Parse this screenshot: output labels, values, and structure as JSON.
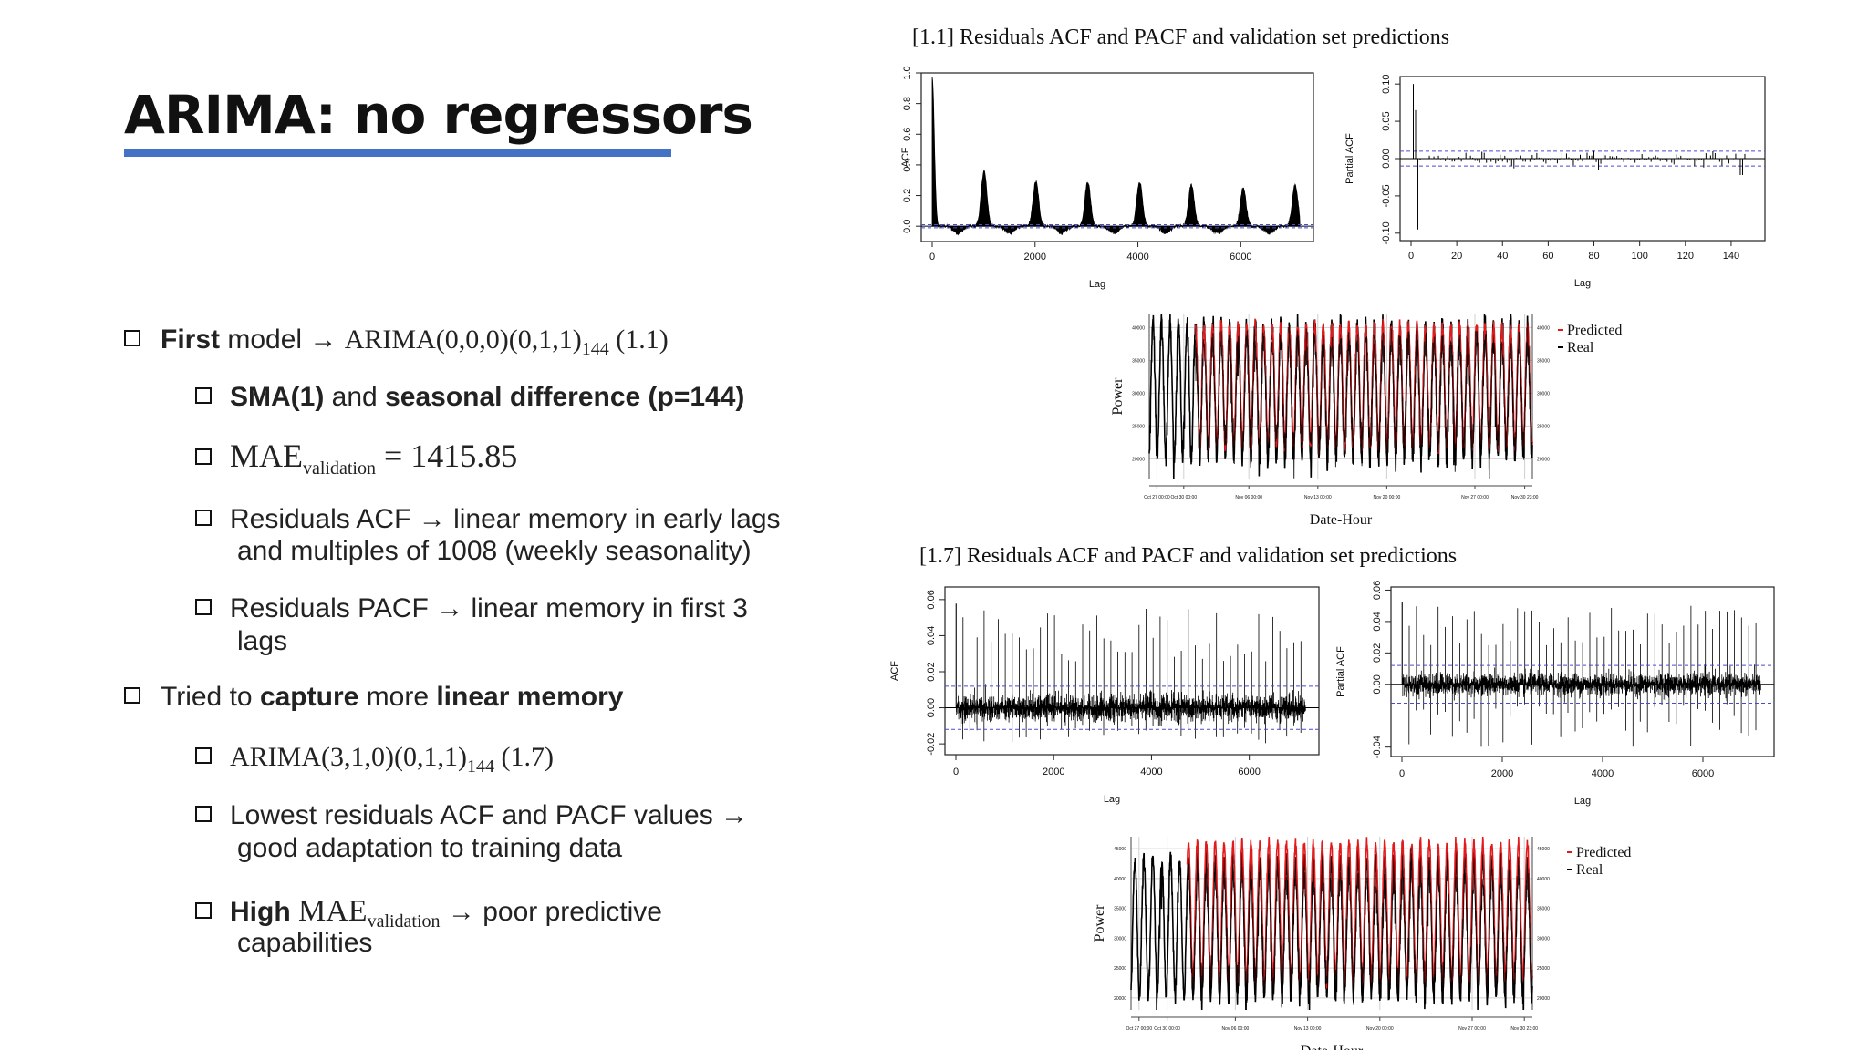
{
  "slide": {
    "title": "ARIMA: no regressors",
    "accent_color": "#4472c4"
  },
  "bullets": {
    "b1": {
      "bold": "First",
      "text": " model → ",
      "math": "ARIMA(0,0,0)(0,1,1)",
      "sub": "144",
      "tail": " (1.1)"
    },
    "b1a": {
      "bold1": "SMA(1)",
      "mid": " and ",
      "bold2": "seasonal difference (p=144)"
    },
    "b1b": {
      "math": "MAE",
      "sub": "validation",
      "tail": " =  1415.85"
    },
    "b1c_line1": "Residuals ACF → linear memory in early lags",
    "b1c_line2": "and multiples of 1008 (weekly seasonality)",
    "b1d_line1": "Residuals PACF → linear memory in first 3",
    "b1d_line2": "lags",
    "b2": {
      "pre": "Tried to ",
      "bold1": "capture",
      "mid": " more ",
      "bold2": "linear memory"
    },
    "b2a": {
      "math": "ARIMA(3,1,0)(0,1,1)",
      "sub": "144",
      "tail": " (1.7)"
    },
    "b2b_line1": "Lowest residuals ACF and PACF values →",
    "b2b_line2": "good adaptation to training data",
    "b2c": {
      "bold": "High ",
      "math": "MAE",
      "sub": "validation",
      "tail": " → poor predictive"
    },
    "b2c_line2": "capabilities"
  },
  "panel1": {
    "title": "[1.1] Residuals ACF and PACF and validation set predictions"
  },
  "panel2": {
    "title": "[1.7] Residuals ACF and PACF and validation set predictions"
  },
  "chart_data": [
    {
      "id": "acf_1_1",
      "type": "line",
      "title": "",
      "xlabel": "Lag",
      "ylabel": "ACF",
      "xlim": [
        0,
        7200
      ],
      "ylim": [
        -0.1,
        1.0
      ],
      "xticks": [
        "0",
        "2000",
        "4000",
        "6000"
      ],
      "yticks": [
        "0.0",
        "0.2",
        "0.4",
        "0.6",
        "0.8",
        "1.0"
      ],
      "spike_lags": [
        0,
        1008,
        2016,
        3024,
        4032,
        5040,
        6048,
        7056
      ],
      "spike_values": [
        0.97,
        0.36,
        0.29,
        0.29,
        0.29,
        0.27,
        0.25,
        0.27
      ],
      "conf_band": 0.01,
      "grid": false
    },
    {
      "id": "pacf_1_1",
      "type": "bar",
      "title": "",
      "xlabel": "Lag",
      "ylabel": "Partial ACF",
      "xlim": [
        0,
        150
      ],
      "ylim": [
        -0.11,
        0.11
      ],
      "xticks": [
        "0",
        "20",
        "40",
        "60",
        "80",
        "100",
        "120",
        "140"
      ],
      "yticks": [
        "-0.10",
        "-0.05",
        "0.00",
        "0.05",
        "0.10"
      ],
      "early_lags": [
        1,
        2,
        3
      ],
      "early_values": [
        0.1,
        0.065,
        -0.095
      ],
      "conf_band": 0.01,
      "grid": false
    },
    {
      "id": "pred_1_1",
      "type": "line",
      "title": "",
      "xlabel": "Date-Hour",
      "ylabel": "Power",
      "ylim": [
        17000,
        42000
      ],
      "yticks": [
        "20000",
        "25000",
        "30000",
        "35000",
        "40000"
      ],
      "xticks": [
        "Oct 27 00:00",
        "Oct 30 00:00",
        "Nov 06 00:00",
        "Nov 13 00:00",
        "Nov 20 00:00",
        "Nov 27 00:00",
        "Nov 30 23:00"
      ],
      "series": [
        {
          "name": "Predicted",
          "color": "#e31a1c",
          "cycle_low": 22000,
          "cycle_high": 40200
        },
        {
          "name": "Real",
          "color": "#000000",
          "cycle_low": 20000,
          "cycle_high": 40500
        }
      ],
      "legend": "top-right",
      "grid": true
    },
    {
      "id": "acf_1_7",
      "type": "line",
      "title": "",
      "xlabel": "Lag",
      "ylabel": "ACF",
      "xlim": [
        0,
        7200
      ],
      "ylim": [
        -0.026,
        0.067
      ],
      "xticks": [
        "0",
        "2000",
        "4000",
        "6000"
      ],
      "yticks": [
        "-0.02",
        "0.00",
        "0.02",
        "0.04",
        "0.06"
      ],
      "conf_band": 0.012,
      "grid": false
    },
    {
      "id": "pacf_1_7",
      "type": "line",
      "title": "",
      "xlabel": "Lag",
      "ylabel": "Partial ACF",
      "xlim": [
        0,
        7200
      ],
      "ylim": [
        -0.046,
        0.062
      ],
      "xticks": [
        "0",
        "2000",
        "4000",
        "6000"
      ],
      "yticks": [
        "-0.04",
        "0.00",
        "0.02",
        "0.04",
        "0.06"
      ],
      "conf_band": 0.012,
      "grid": false
    },
    {
      "id": "pred_1_7",
      "type": "line",
      "title": "",
      "xlabel": "Date-Hour",
      "ylabel": "Power",
      "ylim": [
        18000,
        47000
      ],
      "yticks": [
        "20000",
        "25000",
        "30000",
        "35000",
        "40000",
        "45000"
      ],
      "xticks": [
        "Oct 27 00:00",
        "Oct 30 00:00",
        "Nov 06 00:00",
        "Nov 13 00:00",
        "Nov 20 00:00",
        "Nov 27 00:00",
        "Nov 30 23:00"
      ],
      "series": [
        {
          "name": "Predicted",
          "color": "#e31a1c",
          "cycle_low": 23000,
          "cycle_high": 46000
        },
        {
          "name": "Real",
          "color": "#000000",
          "cycle_low": 20000,
          "cycle_high": 43000
        }
      ],
      "legend": "top-right",
      "grid": true
    }
  ]
}
